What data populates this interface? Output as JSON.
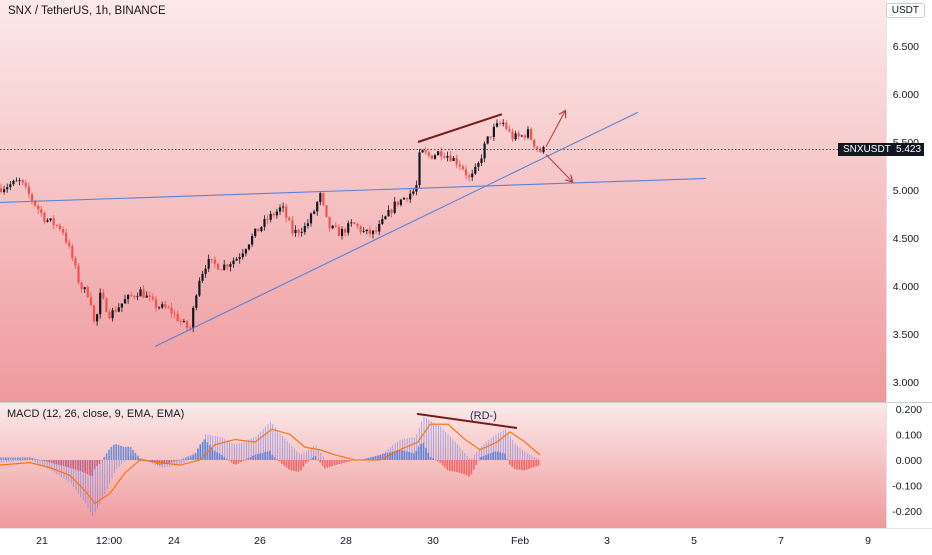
{
  "header": {
    "title": "SNX / TetherUS, 1h, BINANCE",
    "currency_button": "USDT"
  },
  "price_tag": {
    "symbol": "SNXUSDT",
    "value": "5.423"
  },
  "macd": {
    "title": "MACD (12, 26, close, 9, EMA, EMA)",
    "annotation": "(RD-)"
  },
  "colors": {
    "background_gradient": [
      "#fce9e9",
      "#ef999d"
    ],
    "candle_up": "#131722",
    "candle_down": "#ef5350",
    "trendline": "#5b82d6",
    "annotation_line": "#7a1a1a",
    "macd_line": "#2962ff",
    "signal_line": "#ff6d00",
    "hist_up": "#5b82d6",
    "hist_down": "#ef5350"
  },
  "chart_data": [
    {
      "type": "candlestick",
      "title": "SNX / TetherUS, 1h, BINANCE",
      "price_axis_ticks": [
        "6.500",
        "6.000",
        "5.500",
        "5.000",
        "4.500",
        "4.000",
        "3.500",
        "3.000"
      ],
      "ylim": [
        2.8,
        6.9
      ],
      "x_ticks": [
        "21",
        "12:00",
        "24",
        "26",
        "28",
        "30",
        "Feb",
        "3",
        "5",
        "7",
        "9"
      ],
      "last_price": 5.423,
      "close_path": [
        [
          0,
          5.02
        ],
        [
          20,
          5.09
        ],
        [
          32,
          4.9
        ],
        [
          45,
          4.7
        ],
        [
          62,
          4.6
        ],
        [
          72,
          4.3
        ],
        [
          80,
          4.0
        ],
        [
          90,
          3.9
        ],
        [
          95,
          3.55
        ],
        [
          100,
          3.9
        ],
        [
          110,
          3.7
        ],
        [
          125,
          3.85
        ],
        [
          140,
          3.95
        ],
        [
          155,
          3.8
        ],
        [
          170,
          3.75
        ],
        [
          183,
          3.6
        ],
        [
          190,
          3.55
        ],
        [
          198,
          4.05
        ],
        [
          207,
          4.25
        ],
        [
          222,
          4.2
        ],
        [
          238,
          4.3
        ],
        [
          255,
          4.55
        ],
        [
          268,
          4.7
        ],
        [
          282,
          4.82
        ],
        [
          293,
          4.55
        ],
        [
          306,
          4.62
        ],
        [
          315,
          4.8
        ],
        [
          320,
          4.95
        ],
        [
          328,
          4.62
        ],
        [
          340,
          4.55
        ],
        [
          353,
          4.65
        ],
        [
          365,
          4.55
        ],
        [
          375,
          4.55
        ],
        [
          385,
          4.7
        ],
        [
          395,
          4.85
        ],
        [
          408,
          4.95
        ],
        [
          416,
          5.0
        ],
        [
          420,
          5.4
        ],
        [
          430,
          5.35
        ],
        [
          440,
          5.4
        ],
        [
          450,
          5.35
        ],
        [
          462,
          5.25
        ],
        [
          470,
          5.1
        ],
        [
          478,
          5.25
        ],
        [
          486,
          5.5
        ],
        [
          495,
          5.65
        ],
        [
          503,
          5.7
        ],
        [
          512,
          5.55
        ],
        [
          520,
          5.55
        ],
        [
          528,
          5.6
        ],
        [
          533,
          5.5
        ],
        [
          540,
          5.4
        ],
        [
          544,
          5.42
        ]
      ],
      "overlays": {
        "horizontal_trendline": [
          [
            0,
            4.87
          ],
          [
            706,
            5.12
          ]
        ],
        "rising_trendline": [
          [
            155,
            3.37
          ],
          [
            638,
            5.81
          ]
        ],
        "bearish_divergence_line": [
          [
            418,
            5.5
          ],
          [
            502,
            5.79
          ]
        ],
        "arrow_up": [
          [
            546,
            5.45
          ],
          [
            565,
            5.82
          ]
        ],
        "arrow_down": [
          [
            546,
            5.37
          ],
          [
            572,
            5.09
          ]
        ]
      }
    },
    {
      "type": "macd",
      "title": "MACD (12, 26, close, 9, EMA, EMA)",
      "axis_ticks": [
        "0.200",
        "0.100",
        "0.000",
        "-0.100",
        "-0.200"
      ],
      "ylim": [
        -0.25,
        0.2
      ],
      "macd_path": [
        [
          0,
          -0.01
        ],
        [
          30,
          0.0
        ],
        [
          50,
          -0.04
        ],
        [
          70,
          -0.09
        ],
        [
          85,
          -0.17
        ],
        [
          92,
          -0.22
        ],
        [
          100,
          -0.17
        ],
        [
          115,
          -0.04
        ],
        [
          130,
          0.02
        ],
        [
          145,
          0.0
        ],
        [
          160,
          -0.03
        ],
        [
          180,
          -0.02
        ],
        [
          195,
          0.02
        ],
        [
          205,
          0.1
        ],
        [
          220,
          0.09
        ],
        [
          235,
          0.06
        ],
        [
          255,
          0.09
        ],
        [
          270,
          0.15
        ],
        [
          285,
          0.08
        ],
        [
          300,
          0.02
        ],
        [
          315,
          0.06
        ],
        [
          325,
          0.0
        ],
        [
          340,
          0.0
        ],
        [
          360,
          0.0
        ],
        [
          380,
          0.02
        ],
        [
          400,
          0.08
        ],
        [
          415,
          0.09
        ],
        [
          423,
          0.17
        ],
        [
          440,
          0.13
        ],
        [
          455,
          0.07
        ],
        [
          470,
          0.0
        ],
        [
          480,
          0.05
        ],
        [
          495,
          0.1
        ],
        [
          505,
          0.12
        ],
        [
          515,
          0.06
        ],
        [
          525,
          0.03
        ],
        [
          540,
          0.0
        ]
      ],
      "signal_path": [
        [
          0,
          -0.02
        ],
        [
          30,
          -0.01
        ],
        [
          50,
          -0.03
        ],
        [
          70,
          -0.06
        ],
        [
          85,
          -0.12
        ],
        [
          95,
          -0.17
        ],
        [
          110,
          -0.13
        ],
        [
          125,
          -0.05
        ],
        [
          140,
          0.0
        ],
        [
          160,
          -0.01
        ],
        [
          180,
          -0.02
        ],
        [
          200,
          0.0
        ],
        [
          215,
          0.06
        ],
        [
          235,
          0.08
        ],
        [
          255,
          0.07
        ],
        [
          272,
          0.12
        ],
        [
          290,
          0.1
        ],
        [
          305,
          0.05
        ],
        [
          320,
          0.04
        ],
        [
          335,
          0.02
        ],
        [
          355,
          0.0
        ],
        [
          380,
          0.0
        ],
        [
          400,
          0.04
        ],
        [
          418,
          0.07
        ],
        [
          430,
          0.14
        ],
        [
          448,
          0.14
        ],
        [
          465,
          0.08
        ],
        [
          480,
          0.04
        ],
        [
          497,
          0.07
        ],
        [
          510,
          0.11
        ],
        [
          525,
          0.07
        ],
        [
          540,
          0.02
        ]
      ],
      "divergence_line": [
        [
          417,
          0.18
        ],
        [
          517,
          0.125
        ]
      ]
    }
  ]
}
